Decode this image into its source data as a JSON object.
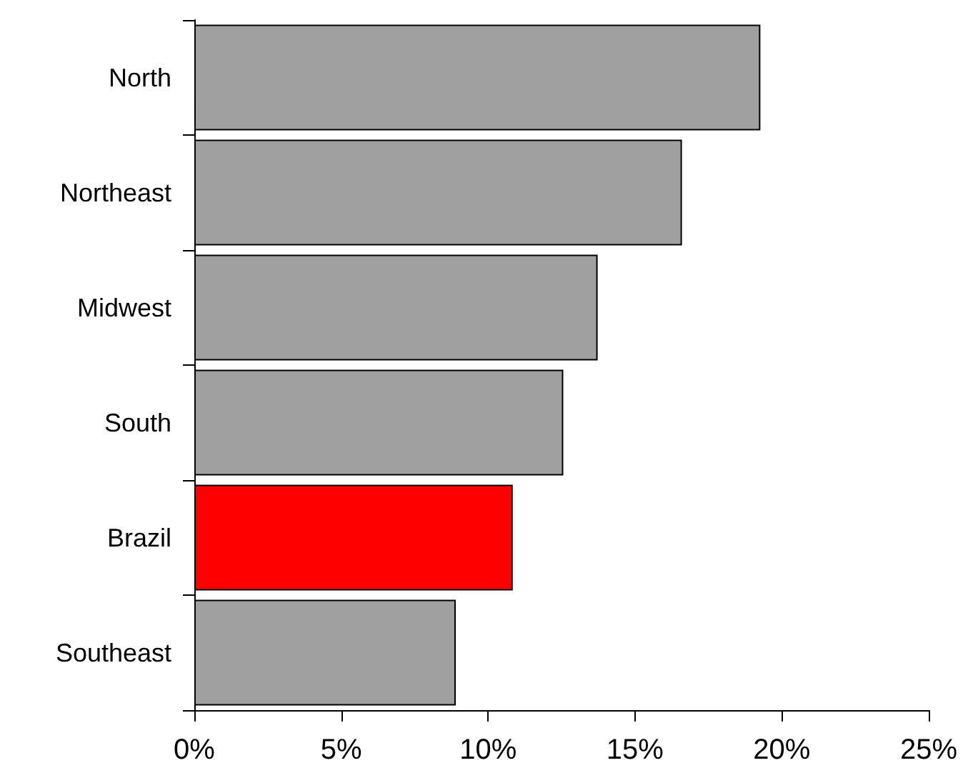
{
  "chart_data": {
    "type": "bar",
    "orientation": "horizontal",
    "categories": [
      "North",
      "Northeast",
      "Midwest",
      "South",
      "Brazil",
      "Southeast"
    ],
    "values": [
      19.27,
      16.6,
      13.73,
      12.56,
      10.84,
      8.9
    ],
    "colors": [
      "#a0a0a0",
      "#a0a0a0",
      "#a0a0a0",
      "#a0a0a0",
      "#ff0000",
      "#a0a0a0"
    ],
    "xlim": [
      0,
      25
    ],
    "xticks": [
      {
        "value": 0,
        "label": "0%"
      },
      {
        "value": 5,
        "label": "5%"
      },
      {
        "value": 10,
        "label": "10%"
      },
      {
        "value": 15,
        "label": "15%"
      },
      {
        "value": 20,
        "label": "20%"
      },
      {
        "value": 25,
        "label": "25%"
      }
    ],
    "grid": false
  }
}
